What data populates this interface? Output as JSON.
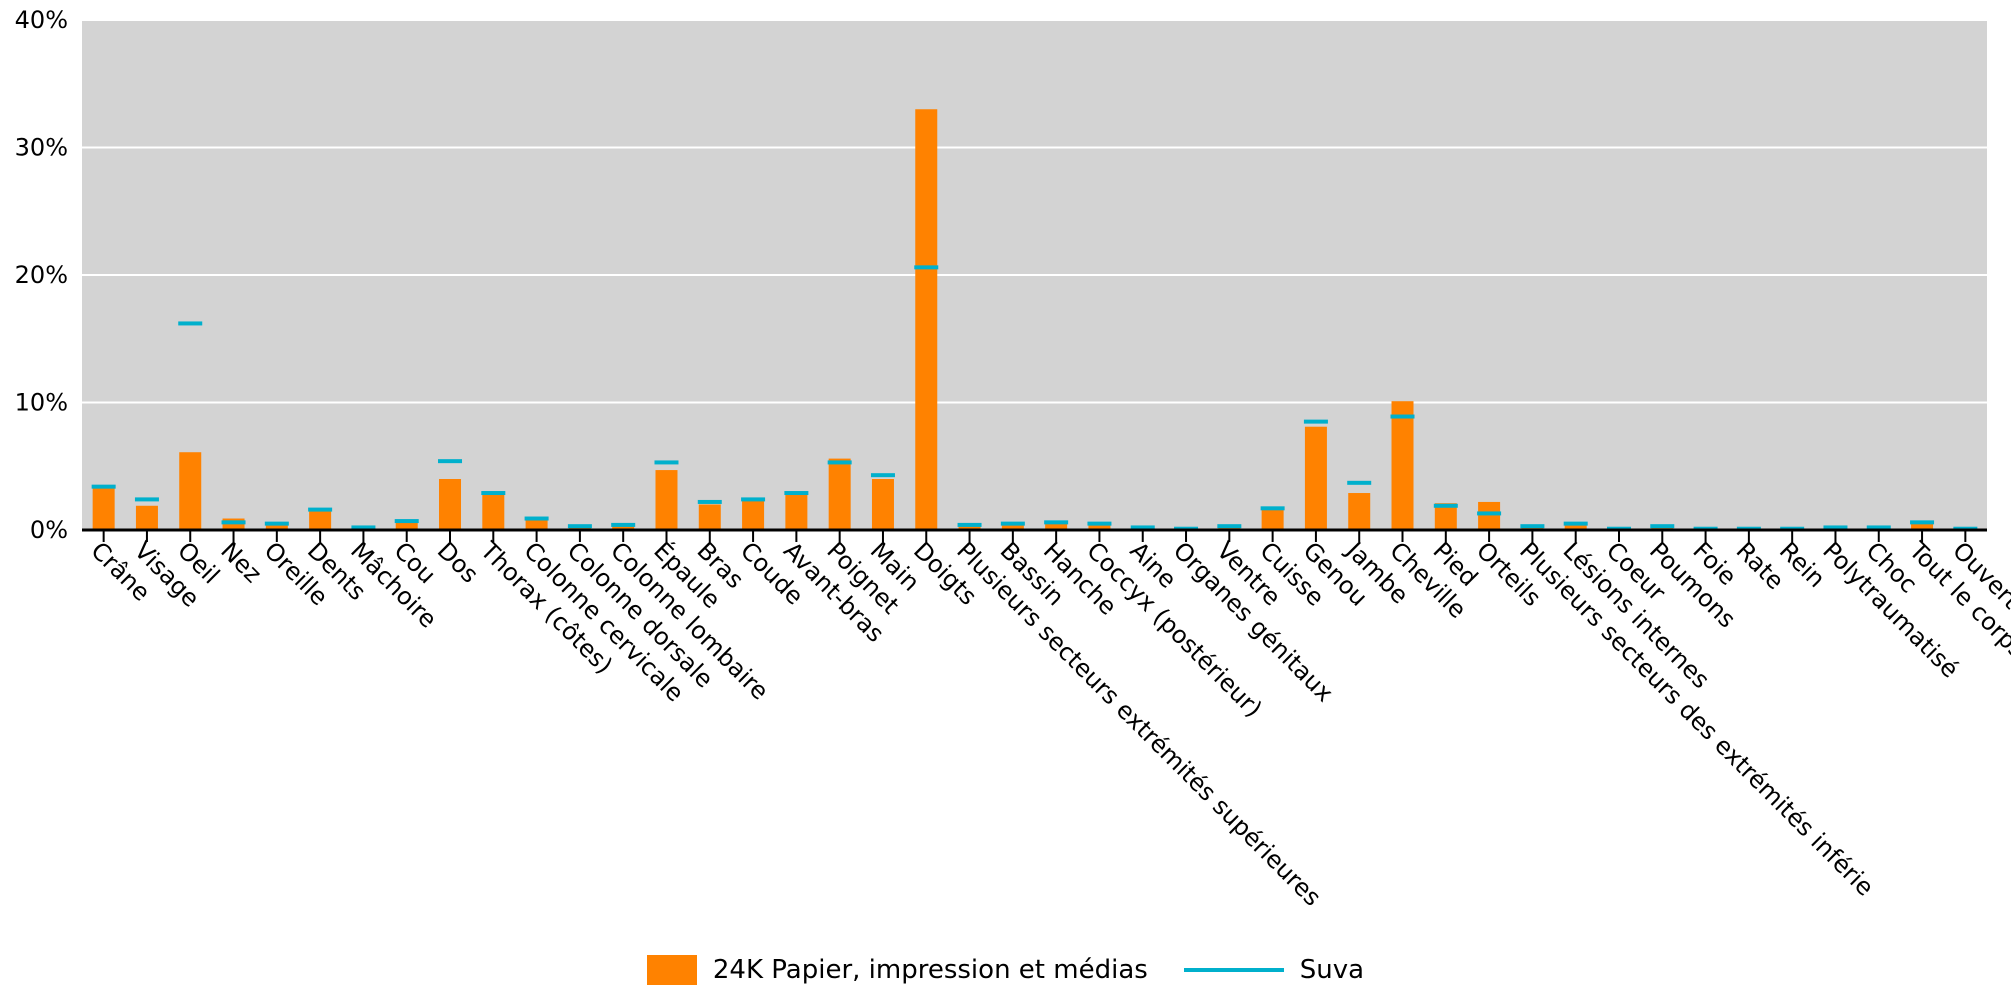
{
  "chart_data": {
    "type": "bar",
    "categories": [
      "Crâne",
      "Visage",
      "Oeil",
      "Nez",
      "Oreille",
      "Dents",
      "Mâchoire",
      "Cou",
      "Dos",
      "Thorax (côtes)",
      "Colonne cervicale",
      "Colonne dorsale",
      "Colonne lombaire",
      "Épaule",
      "Bras",
      "Coude",
      "Avant-bras",
      "Poignet",
      "Main",
      "Doigts",
      "Plusieurs secteurs extrémités supérieures",
      "Bassin",
      "Hanche",
      "Coccyx (postérieur)",
      "Aine",
      "Organes génitaux",
      "Ventre",
      "Cuisse",
      "Genou",
      "Jambe",
      "Cheville",
      "Pied",
      "Orteils",
      "Plusieurs secteurs des extrémités inférie",
      "Lésions internes",
      "Coeur",
      "Poumons",
      "Foie",
      "Rate",
      "Rein",
      "Polytraumatisé",
      "Choc",
      "Tout le corps",
      "Ouvert"
    ],
    "series": [
      {
        "name": "24K Papier, impression et médias",
        "kind": "bar",
        "color": "#ff8200",
        "values": [
          3.3,
          1.9,
          6.1,
          0.9,
          0.4,
          1.5,
          0.1,
          0.6,
          4.0,
          2.8,
          0.8,
          0.3,
          0.3,
          4.7,
          2.0,
          2.3,
          2.8,
          5.6,
          4.0,
          33.0,
          0.3,
          0.4,
          0.7,
          0.4,
          0.1,
          0.0,
          0.2,
          1.6,
          8.1,
          2.9,
          10.1,
          2.1,
          2.2,
          0.3,
          0.5,
          0.0,
          0.2,
          0.0,
          0.0,
          0.0,
          0.1,
          0.1,
          0.6,
          0.0
        ]
      },
      {
        "name": "Suva",
        "kind": "marker",
        "color": "#00b0cc",
        "values": [
          3.4,
          2.4,
          16.2,
          0.6,
          0.5,
          1.6,
          0.2,
          0.7,
          5.4,
          2.9,
          0.9,
          0.3,
          0.4,
          5.3,
          2.2,
          2.4,
          2.9,
          5.3,
          4.3,
          20.6,
          0.4,
          0.5,
          0.6,
          0.5,
          0.2,
          0.1,
          0.3,
          1.7,
          8.5,
          3.7,
          8.9,
          1.9,
          1.3,
          0.3,
          0.5,
          0.1,
          0.3,
          0.1,
          0.1,
          0.1,
          0.2,
          0.2,
          0.6,
          0.1
        ]
      }
    ],
    "y_ticks": [
      "0%",
      "10%",
      "20%",
      "30%",
      "40%"
    ],
    "ylim": [
      0,
      40
    ],
    "grid": true,
    "legend_position": "bottom-center",
    "plot_background": "#d3d3d3"
  },
  "legend": {
    "bar_label": "24K Papier, impression et médias",
    "line_label": "Suva"
  }
}
